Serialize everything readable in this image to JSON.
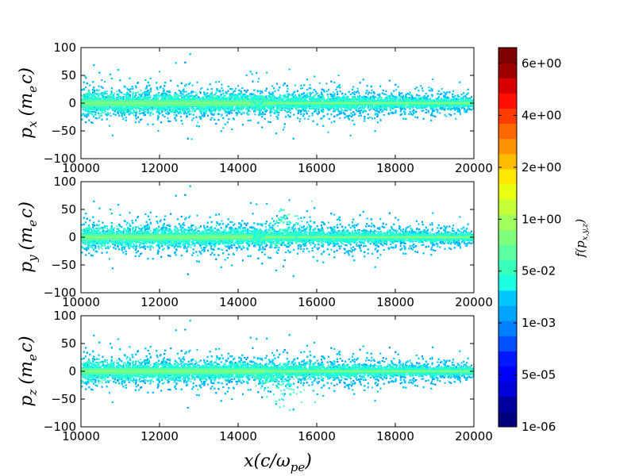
{
  "chart_data": {
    "type": "heatmap",
    "x_range": [
      10000,
      20000
    ],
    "y_range": [
      -100,
      100
    ],
    "x_ticks": [
      "10000",
      "12000",
      "14000",
      "16000",
      "18000",
      "20000"
    ],
    "y_ticks": [
      "100",
      "50",
      "0",
      "−50",
      "−100"
    ],
    "xlabel_parts": {
      "main": "x(c/ω",
      "sub": "pe",
      "close": ")"
    },
    "panels": [
      {
        "ylabel": {
          "var": "p",
          "sub": "x",
          "unit": "(m",
          "unit_sub": "e",
          "unit_tail": "c)"
        },
        "core_halfwidth": 28,
        "tail_halfwidth": 16,
        "band_halfwidth_left": 12,
        "band_halfwidth_right": 2,
        "features": [
          {
            "x": 14500,
            "y": 3,
            "r": 5
          }
        ]
      },
      {
        "ylabel": {
          "var": "p",
          "sub": "y",
          "unit": "(m",
          "unit_sub": "e",
          "unit_tail": "c)"
        },
        "core_halfwidth": 26,
        "tail_halfwidth": 32,
        "band_halfwidth_left": 11,
        "band_halfwidth_right": 2,
        "features": [
          {
            "x": 14500,
            "y": 2,
            "r": 5
          },
          {
            "x": 15200,
            "y": 30,
            "r": 12
          }
        ]
      },
      {
        "ylabel": {
          "var": "p",
          "sub": "z",
          "unit": "(m",
          "unit_sub": "e",
          "unit_tail": "c)"
        },
        "core_halfwidth": 26,
        "tail_halfwidth": 30,
        "band_halfwidth_left": 11,
        "band_halfwidth_right": 2,
        "features": [
          {
            "x": 14700,
            "y": -12,
            "r": 6
          },
          {
            "x": 15200,
            "y": -30,
            "r": 14
          }
        ]
      }
    ],
    "colorbar": {
      "label_parts": {
        "main": "f(p",
        "sub": "x,y,z",
        "close": ")"
      },
      "tick_labels": [
        "6e+00",
        "4e+00",
        "2e+00",
        "1e+00",
        "5e-02",
        "1e-03",
        "5e-05",
        "1e-06"
      ],
      "colors": [
        "#00007f",
        "#00009f",
        "#0000d8",
        "#0000ff",
        "#0018ff",
        "#0050ff",
        "#0080ff",
        "#00a4ff",
        "#00c8ff",
        "#19ffe0",
        "#38ffbc",
        "#5cffa0",
        "#80ff7c",
        "#a0ff5c",
        "#c4ff38",
        "#e8ff14",
        "#ffe800",
        "#ffbc00",
        "#ff9400",
        "#ff6800",
        "#ff3c00",
        "#ff1000",
        "#d80000",
        "#9f0000",
        "#7f0000"
      ]
    },
    "grid": false,
    "legend": "none"
  }
}
